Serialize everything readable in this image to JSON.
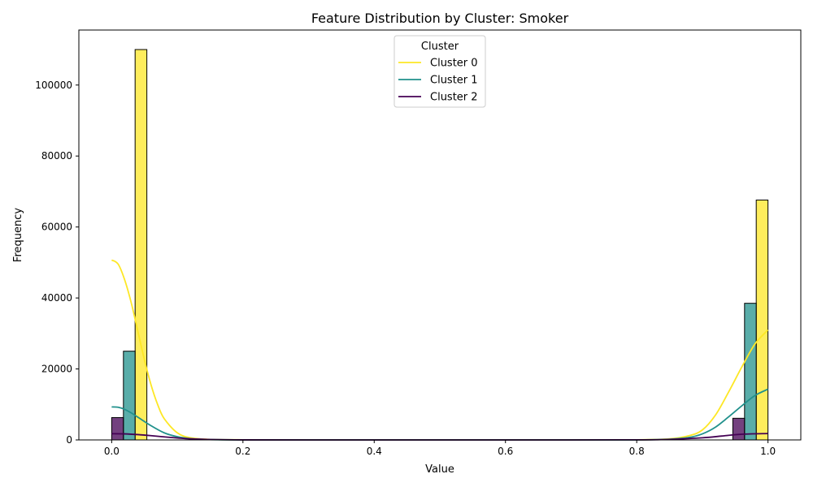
{
  "chart_data": {
    "type": "bar",
    "title": "Feature Distribution by Cluster: Smoker",
    "xlabel": "Value",
    "ylabel": "Frequency",
    "xlim": [
      -0.05,
      1.05
    ],
    "ylim": [
      0,
      115500
    ],
    "x_ticks": [
      0.0,
      0.2,
      0.4,
      0.6,
      0.8,
      1.0
    ],
    "x_tick_labels": [
      "0.0",
      "0.2",
      "0.4",
      "0.6",
      "0.8",
      "1.0"
    ],
    "y_ticks": [
      0,
      20000,
      40000,
      60000,
      80000,
      100000
    ],
    "y_tick_labels": [
      "0",
      "20000",
      "40000",
      "60000",
      "80000",
      "100000"
    ],
    "grid": false,
    "legend": {
      "title": "Cluster",
      "placement": "top-center"
    },
    "series": [
      {
        "name": "Cluster 0",
        "color": "#fde725",
        "bars": [
          {
            "x0": 0.0357,
            "x1": 0.0536,
            "value": 110000
          },
          {
            "x0": 0.9821,
            "x1": 1.0,
            "value": 67600
          }
        ],
        "kde": {
          "x": [
            0.0,
            0.01,
            0.02,
            0.03,
            0.04,
            0.05,
            0.06,
            0.07,
            0.08,
            0.1,
            0.12,
            0.15,
            0.2,
            0.3,
            0.5,
            0.7,
            0.8,
            0.85,
            0.88,
            0.9,
            0.92,
            0.94,
            0.96,
            0.98,
            1.0
          ],
          "y": [
            50700,
            49500,
            45000,
            38500,
            30500,
            22500,
            15500,
            10000,
            6000,
            2000,
            600,
            150,
            30,
            0,
            0,
            0,
            30,
            300,
            1200,
            2800,
            7000,
            13500,
            20500,
            27000,
            31000
          ]
        }
      },
      {
        "name": "Cluster 1",
        "color": "#21918c",
        "bars": [
          {
            "x0": 0.0179,
            "x1": 0.0357,
            "value": 25000
          },
          {
            "x0": 0.9643,
            "x1": 0.9821,
            "value": 38500
          }
        ],
        "kde": {
          "x": [
            0.0,
            0.01,
            0.02,
            0.03,
            0.04,
            0.06,
            0.08,
            0.1,
            0.12,
            0.15,
            0.2,
            0.3,
            0.5,
            0.7,
            0.8,
            0.85,
            0.88,
            0.9,
            0.92,
            0.94,
            0.96,
            0.98,
            1.0
          ],
          "y": [
            9300,
            9200,
            8600,
            7600,
            6400,
            4000,
            2000,
            900,
            350,
            100,
            20,
            0,
            0,
            0,
            20,
            200,
            700,
            1700,
            3600,
            6500,
            9600,
            12500,
            14300
          ]
        }
      },
      {
        "name": "Cluster 2",
        "color": "#440154",
        "bars": [
          {
            "x0": 0.0,
            "x1": 0.0179,
            "value": 6300
          },
          {
            "x0": 0.9464,
            "x1": 0.9643,
            "value": 6100
          }
        ],
        "kde": {
          "x": [
            0.0,
            0.02,
            0.04,
            0.06,
            0.08,
            0.1,
            0.12,
            0.15,
            0.2,
            0.3,
            0.5,
            0.7,
            0.8,
            0.85,
            0.9,
            0.93,
            0.96,
            1.0
          ],
          "y": [
            1750,
            1700,
            1500,
            1200,
            850,
            550,
            300,
            120,
            20,
            0,
            0,
            0,
            30,
            150,
            600,
            1100,
            1600,
            1800
          ]
        }
      }
    ]
  }
}
